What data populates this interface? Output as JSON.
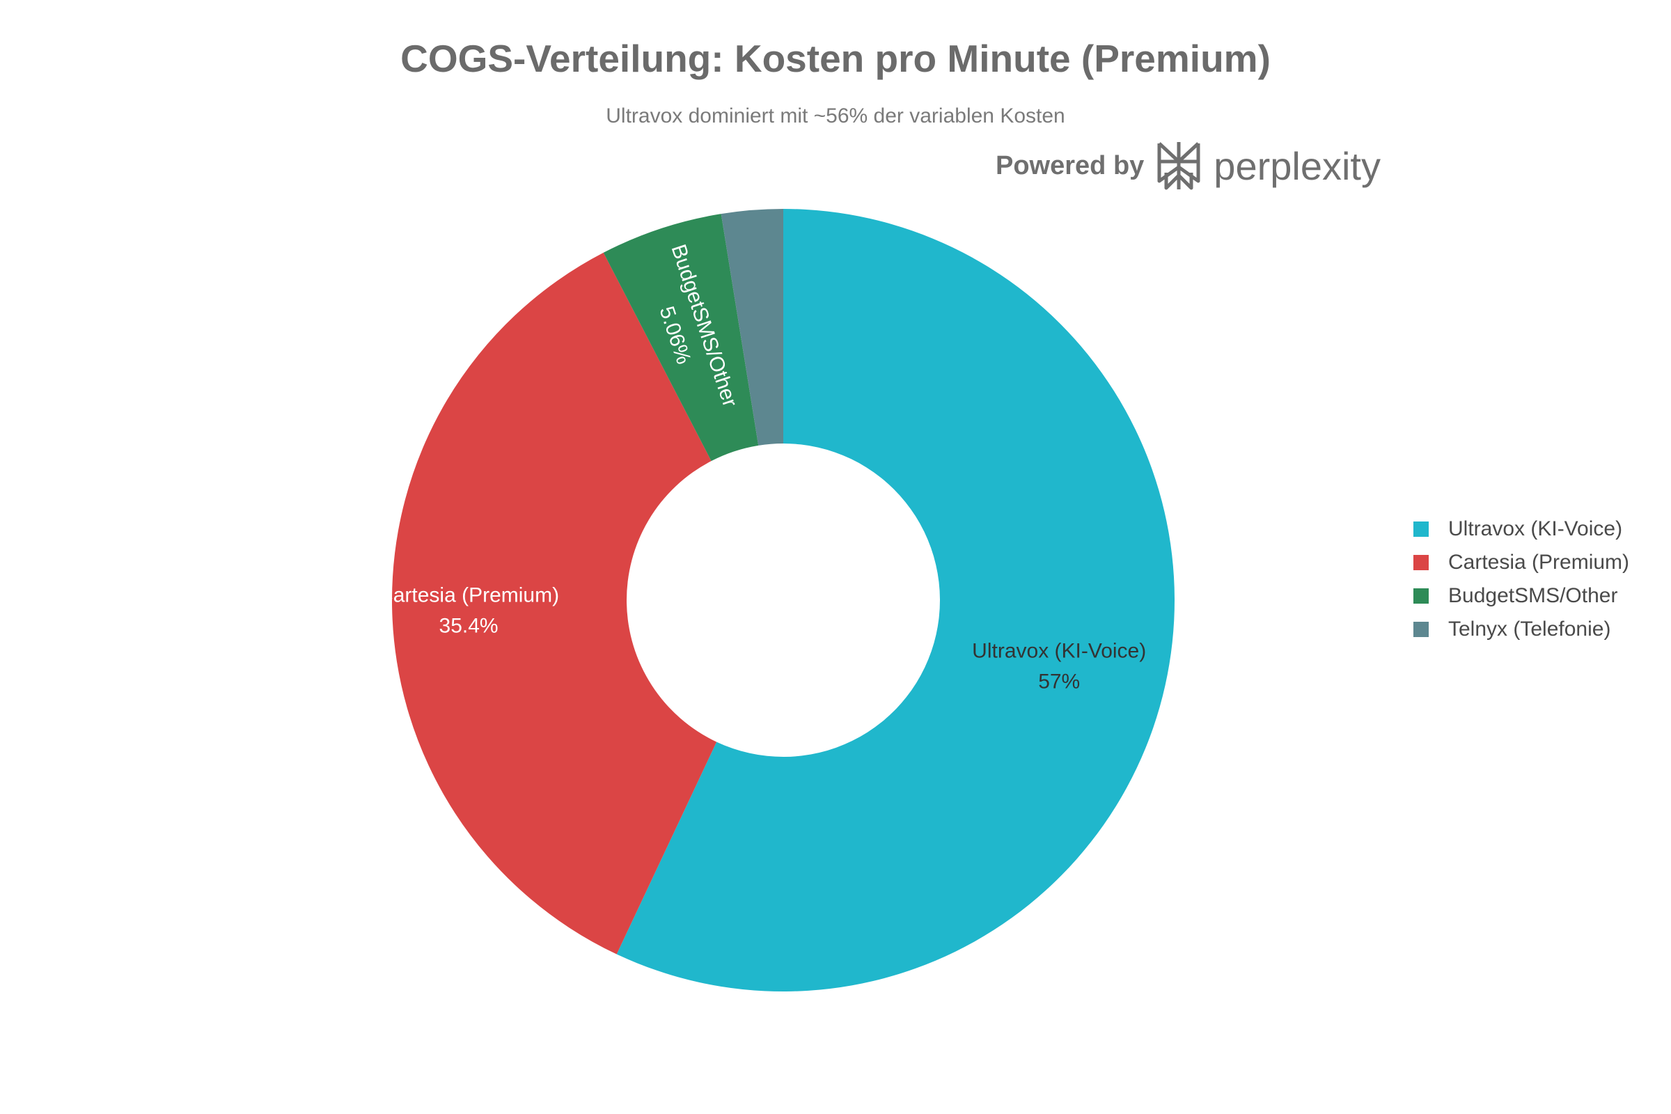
{
  "chart_data": {
    "type": "pie",
    "donut": true,
    "title": "COGS-Verteilung: Kosten pro Minute (Premium)",
    "subtitle": "Ultravox dominiert mit ~56% der variablen Kosten",
    "legend_position": "right",
    "slices": [
      {
        "label": "Ultravox (KI-Voice)",
        "value": 57,
        "display": "57%",
        "color": "#20b7cc",
        "label_color": "#333333"
      },
      {
        "label": "Cartesia (Premium)",
        "value": 35.4,
        "display": "35.4%",
        "color": "#db4545",
        "label_color": "#ffffff"
      },
      {
        "label": "BudgetSMS/Other",
        "value": 5.06,
        "display": "5.06%",
        "color": "#2e8b57",
        "label_color": "#ffffff"
      },
      {
        "label": "Telnyx (Telefonie)",
        "value": 2.54,
        "display": "",
        "color": "#5d8790",
        "label_color": "#ffffff"
      }
    ]
  },
  "watermark": {
    "powered_by": "Powered by",
    "brand": "perplexity",
    "logo_icon": "perplexity-logo-icon"
  }
}
